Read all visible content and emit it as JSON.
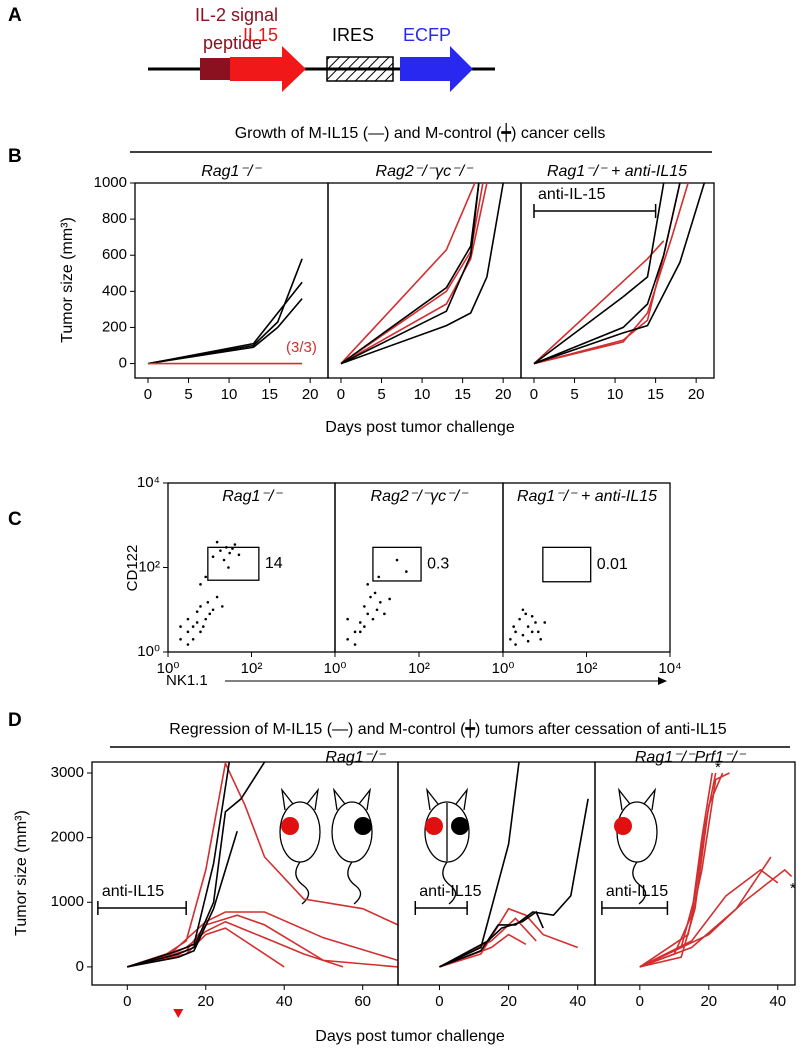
{
  "panels": {
    "A": {
      "label": "A",
      "construct": {
        "signal_line1": "IL-2 signal",
        "signal_line2": "peptide",
        "gene": "IL15",
        "ires": "IRES",
        "reporter": "ECFP"
      }
    },
    "B": {
      "label": "B",
      "title": "Growth of M-IL15 (—) and M-control (┿) cancer cells",
      "ylabel": "Tumor size (mm³)",
      "xlabel": "Days post tumor challenge"
    },
    "C": {
      "label": "C",
      "ylabel": "CD122",
      "xlabel": "NK1.1"
    },
    "D": {
      "label": "D",
      "title": "Regression of M-IL15 (—) and M-control (┿) tumors after cessation of anti-IL15",
      "ylabel": "Tumor size (mm³)",
      "xlabel": "Days post tumor challenge"
    }
  },
  "chart_data": [
    {
      "type": "line",
      "title": "Rag1⁻/⁻",
      "xlim": [
        -1.6,
        22.2
      ],
      "ylim": [
        -80,
        1000
      ],
      "xticks": [
        0,
        5,
        10,
        15,
        20
      ],
      "yticks": [
        0,
        200,
        400,
        600,
        800,
        1000
      ],
      "series": [
        {
          "color": "#000000",
          "x": [
            0,
            13,
            16,
            19
          ],
          "values": [
            0,
            100,
            230,
            580
          ]
        },
        {
          "color": "#000000",
          "x": [
            0,
            13,
            16,
            19
          ],
          "values": [
            0,
            110,
            280,
            450
          ]
        },
        {
          "color": "#000000",
          "x": [
            0,
            13,
            16,
            19
          ],
          "values": [
            0,
            90,
            200,
            360
          ]
        },
        {
          "color": "#d32f2f",
          "x": [
            0,
            19
          ],
          "values": [
            0,
            0
          ]
        }
      ],
      "annotations": [
        {
          "text": "(3/3)",
          "color": "#d32f2f"
        }
      ]
    },
    {
      "type": "line",
      "title": "Rag2⁻/⁻γc⁻/⁻",
      "xlim": [
        -1.6,
        22.2
      ],
      "ylim": [
        -80,
        1000
      ],
      "xticks": [
        0,
        5,
        10,
        15,
        20
      ],
      "series": [
        {
          "color": "#d32f2f",
          "x": [
            0,
            13,
            16.5
          ],
          "values": [
            0,
            630,
            1000
          ]
        },
        {
          "color": "#d32f2f",
          "x": [
            0,
            13,
            16,
            18
          ],
          "values": [
            0,
            330,
            580,
            1000
          ]
        },
        {
          "color": "#d32f2f",
          "x": [
            0,
            13,
            16,
            17.5
          ],
          "values": [
            0,
            400,
            620,
            1000
          ]
        },
        {
          "color": "#000000",
          "x": [
            0,
            13,
            16,
            17
          ],
          "values": [
            0,
            420,
            650,
            1000
          ]
        },
        {
          "color": "#000000",
          "x": [
            0,
            13,
            16,
            17
          ],
          "values": [
            0,
            290,
            600,
            1000
          ]
        },
        {
          "color": "#000000",
          "x": [
            0,
            13,
            16,
            18,
            20
          ],
          "values": [
            0,
            210,
            280,
            480,
            1000
          ]
        }
      ]
    },
    {
      "type": "line",
      "title": "Rag1⁻/⁻ + anti-IL15",
      "xlim": [
        -1.6,
        22.2
      ],
      "ylim": [
        -80,
        1000
      ],
      "xticks": [
        0,
        5,
        10,
        15,
        20
      ],
      "series": [
        {
          "color": "#d32f2f",
          "x": [
            0,
            14,
            16
          ],
          "values": [
            0,
            580,
            680
          ]
        },
        {
          "color": "#d32f2f",
          "x": [
            0,
            11,
            14,
            16,
            18
          ],
          "values": [
            0,
            130,
            240,
            600,
            1000
          ]
        },
        {
          "color": "#d32f2f",
          "x": [
            0,
            11,
            14,
            17,
            19
          ],
          "values": [
            0,
            120,
            280,
            700,
            1000
          ]
        },
        {
          "color": "#000000",
          "x": [
            0,
            11,
            14,
            16
          ],
          "values": [
            0,
            370,
            480,
            1000
          ]
        },
        {
          "color": "#000000",
          "x": [
            0,
            11,
            14,
            16,
            18
          ],
          "values": [
            0,
            200,
            330,
            600,
            1000
          ]
        },
        {
          "color": "#000000",
          "x": [
            0,
            11,
            14,
            18,
            21
          ],
          "values": [
            0,
            170,
            210,
            560,
            1000
          ]
        }
      ],
      "treatment": {
        "label": "anti-IL-15",
        "x": [
          0,
          15
        ]
      }
    },
    {
      "type": "scatter",
      "title": "Rag1⁻/⁻",
      "log_scale": true,
      "xlim": [
        1,
        10000
      ],
      "ylim": [
        1,
        10000
      ],
      "xticks": [
        {
          "value": 1,
          "label": "10⁰"
        },
        {
          "value": 100,
          "label": "10²"
        }
      ],
      "yticks": [
        {
          "value": 1,
          "label": "10⁰"
        },
        {
          "value": 100,
          "label": "10²"
        },
        {
          "value": 10000,
          "label": "10⁴"
        }
      ],
      "color": "#000000",
      "x": [
        2,
        3,
        4,
        5,
        6,
        8,
        10,
        3,
        5,
        7,
        12,
        4,
        6,
        9,
        2,
        3,
        15,
        20,
        12,
        18,
        25,
        30,
        40,
        15,
        22,
        35,
        50,
        8,
        6,
        28
      ],
      "values": [
        2,
        3,
        4,
        5,
        3,
        6,
        8,
        6,
        9,
        4,
        10,
        2,
        12,
        15,
        4,
        1.5,
        20,
        12,
        180,
        250,
        300,
        220,
        350,
        400,
        150,
        280,
        200,
        60,
        40,
        100
      ],
      "gate": {
        "x": [
          9,
          150
        ],
        "y": [
          50,
          300
        ],
        "percent": 14
      }
    },
    {
      "type": "scatter",
      "title": "Rag2⁻/⁻γc⁻/⁻",
      "log_scale": true,
      "xlim": [
        1,
        10000
      ],
      "ylim": [
        1,
        10000
      ],
      "xticks": [
        {
          "value": 1,
          "label": "10⁰"
        },
        {
          "value": 100,
          "label": "10²"
        }
      ],
      "color": "#000000",
      "x": [
        2,
        3,
        4,
        5,
        6,
        8,
        10,
        12,
        3,
        5,
        7,
        15,
        4,
        9,
        20,
        2,
        6,
        30,
        50,
        11
      ],
      "values": [
        2,
        3,
        5,
        4,
        8,
        6,
        10,
        15,
        1.5,
        12,
        20,
        8,
        3,
        25,
        18,
        6,
        40,
        150,
        80,
        60
      ],
      "gate": {
        "x": [
          8,
          112
        ],
        "y": [
          48,
          300
        ],
        "percent": 0.3
      }
    },
    {
      "type": "scatter",
      "title": "Rag1⁻/⁻ + anti-IL15",
      "log_scale": true,
      "xlim": [
        1,
        10000
      ],
      "ylim": [
        1,
        10000
      ],
      "xticks": [
        {
          "value": 1,
          "label": "10⁰"
        },
        {
          "value": 100,
          "label": "10²"
        },
        {
          "value": 10000,
          "label": "10⁴"
        }
      ],
      "color": "#000000",
      "x": [
        1.5,
        2,
        3,
        4,
        5,
        2.5,
        3.5,
        6,
        2,
        4,
        7,
        1.8,
        3,
        5,
        8,
        10
      ],
      "values": [
        2,
        3,
        2.5,
        4,
        3,
        6,
        8,
        5,
        1.5,
        1.8,
        3,
        4,
        10,
        7,
        2,
        5
      ],
      "gate": {
        "x": [
          9,
          126
        ],
        "y": [
          46,
          300
        ],
        "percent": 0.01
      }
    },
    {
      "type": "line",
      "title": "Rag1⁻/⁻",
      "xlim": [
        -9,
        69
      ],
      "ylim": [
        -280,
        3170
      ],
      "xticks": [
        0,
        20,
        40,
        60
      ],
      "yticks": [
        0,
        1000,
        2000,
        3000
      ],
      "series": [
        {
          "color": "#d32f2f",
          "x": [
            0,
            10,
            15,
            20,
            25,
            30,
            35,
            45,
            60,
            69
          ],
          "values": [
            0,
            200,
            400,
            1500,
            3150,
            2500,
            1700,
            1050,
            900,
            650
          ]
        },
        {
          "color": "#d32f2f",
          "x": [
            0,
            10,
            20,
            25,
            35,
            50,
            69
          ],
          "values": [
            0,
            150,
            700,
            850,
            850,
            450,
            100
          ]
        },
        {
          "color": "#d32f2f",
          "x": [
            0,
            15,
            20,
            25,
            35,
            45,
            55
          ],
          "values": [
            0,
            300,
            550,
            700,
            450,
            200,
            0
          ]
        },
        {
          "color": "#d32f2f",
          "x": [
            0,
            15,
            20,
            25,
            30,
            40
          ],
          "values": [
            0,
            200,
            500,
            600,
            400,
            0
          ]
        },
        {
          "color": "#d32f2f",
          "x": [
            0,
            15,
            20,
            28,
            35,
            50,
            69
          ],
          "values": [
            0,
            250,
            650,
            800,
            650,
            100,
            0
          ]
        },
        {
          "color": "#000000",
          "x": [
            0,
            13,
            17,
            22,
            26
          ],
          "values": [
            0,
            250,
            350,
            1600,
            3170
          ]
        },
        {
          "color": "#000000",
          "x": [
            0,
            13,
            17,
            22,
            25,
            29,
            35
          ],
          "values": [
            0,
            200,
            300,
            1000,
            2400,
            2600,
            3170
          ]
        },
        {
          "color": "#000000",
          "x": [
            0,
            13,
            17,
            22,
            25,
            28
          ],
          "values": [
            0,
            150,
            250,
            900,
            1500,
            2100
          ]
        }
      ],
      "treatment": {
        "label": "anti-IL15",
        "x": [
          -7.5,
          15
        ]
      },
      "marker_x": 13
    },
    {
      "type": "line",
      "xlim": [
        -12,
        45
      ],
      "ylim": [
        -280,
        3170
      ],
      "xticks": [
        0,
        20,
        40
      ],
      "series": [
        {
          "color": "#d32f2f",
          "x": [
            0,
            12,
            20,
            25,
            30,
            40
          ],
          "values": [
            0,
            200,
            900,
            800,
            500,
            300
          ]
        },
        {
          "color": "#d32f2f",
          "x": [
            0,
            15,
            22,
            28
          ],
          "values": [
            0,
            400,
            750,
            400
          ]
        },
        {
          "color": "#d32f2f",
          "x": [
            0,
            15,
            20,
            25
          ],
          "values": [
            0,
            300,
            500,
            350
          ]
        },
        {
          "color": "#000000",
          "x": [
            0,
            12,
            17,
            20,
            23
          ],
          "values": [
            0,
            300,
            1300,
            1900,
            3170
          ]
        },
        {
          "color": "#000000",
          "x": [
            0,
            12,
            17,
            22,
            27,
            33,
            38,
            43
          ],
          "values": [
            0,
            250,
            650,
            650,
            850,
            800,
            1100,
            2600
          ]
        },
        {
          "color": "#000000",
          "x": [
            0,
            14,
            18,
            24,
            28,
            30
          ],
          "values": [
            0,
            400,
            600,
            700,
            850,
            600
          ]
        }
      ],
      "treatment": {
        "label": "anti-IL15",
        "x": [
          -7,
          8
        ]
      }
    },
    {
      "type": "line",
      "title": "Rag1⁻/⁻Prf1⁻/⁻",
      "xlim": [
        -13,
        45
      ],
      "ylim": [
        -280,
        3170
      ],
      "xticks": [
        0,
        20,
        40
      ],
      "series": [
        {
          "color": "#d32f2f",
          "x": [
            0,
            10,
            15,
            18,
            21
          ],
          "values": [
            0,
            200,
            800,
            2000,
            3000
          ]
        },
        {
          "color": "#d32f2f",
          "x": [
            0,
            12,
            16,
            19,
            22
          ],
          "values": [
            0,
            300,
            1100,
            2200,
            3000
          ]
        },
        {
          "color": "#d32f2f",
          "x": [
            0,
            12,
            16,
            20,
            24
          ],
          "values": [
            0,
            150,
            900,
            2500,
            3000
          ]
        },
        {
          "color": "#d32f2f",
          "x": [
            0,
            14,
            18,
            22,
            26
          ],
          "values": [
            0,
            500,
            1500,
            2900,
            3000
          ]
        },
        {
          "color": "#d32f2f",
          "x": [
            0,
            15,
            25,
            35,
            40
          ],
          "values": [
            0,
            400,
            1100,
            1500,
            1300
          ]
        },
        {
          "color": "#d32f2f",
          "x": [
            0,
            15,
            28,
            38
          ],
          "values": [
            0,
            300,
            900,
            1700
          ]
        },
        {
          "color": "#d32f2f",
          "x": [
            0,
            20,
            30,
            42,
            44
          ],
          "values": [
            0,
            500,
            1000,
            1500,
            1400
          ]
        }
      ],
      "treatment": {
        "label": "anti-IL15",
        "x": [
          -11,
          8
        ]
      },
      "annotations": [
        {
          "text": "*",
          "color": "#000000"
        },
        {
          "text": "*",
          "color": "#000000"
        }
      ]
    }
  ]
}
